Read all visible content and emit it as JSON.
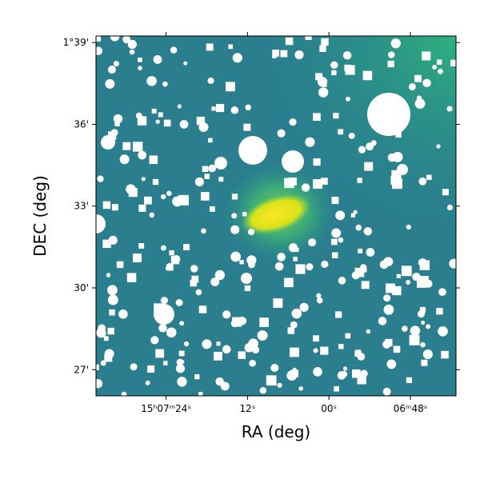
{
  "chart_data": {
    "type": "image",
    "xlabel": "RA (deg)",
    "ylabel": "DEC (deg)",
    "xlim": [
      226.893,
      226.672
    ],
    "ylim": [
      1.434,
      1.654
    ],
    "xticks": [
      {
        "value": 226.85,
        "label": "15ʰ07ᵐ24ˢ"
      },
      {
        "value": 226.8,
        "label": "12ˢ"
      },
      {
        "value": 226.75,
        "label": "00ˢ"
      },
      {
        "value": 226.7,
        "label": "06ᵐ48ˢ"
      }
    ],
    "yticks": [
      {
        "value": 1.65,
        "label": "1°39'"
      },
      {
        "value": 1.6,
        "label": "36'"
      },
      {
        "value": 1.55,
        "label": "33'"
      },
      {
        "value": 1.5,
        "label": "30'"
      },
      {
        "value": 1.45,
        "label": "27'"
      }
    ],
    "colormap": "viridis"
  }
}
